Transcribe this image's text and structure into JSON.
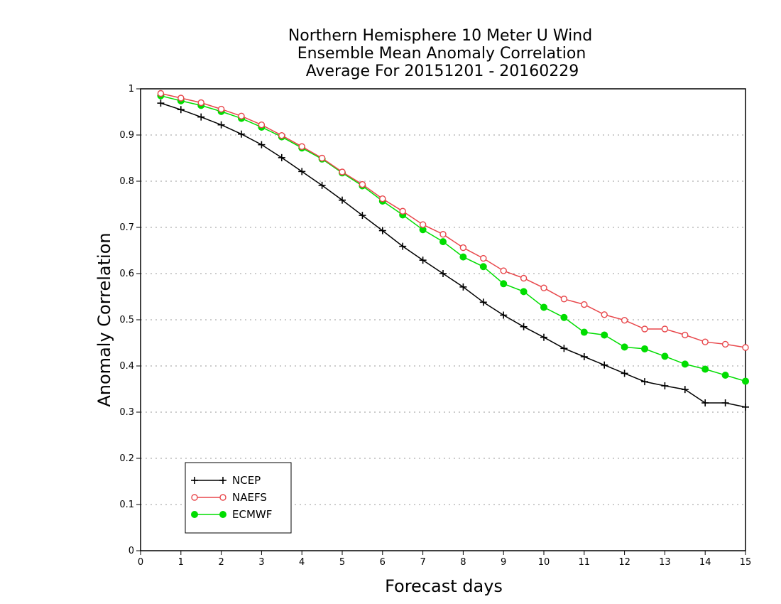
{
  "chart_data": {
    "type": "line",
    "title_lines": [
      "Northern Hemisphere 10 Meter U Wind",
      "Ensemble Mean Anomaly Correlation",
      "Average For 20151201 - 20160229"
    ],
    "xlabel": "Forecast days",
    "ylabel": "Anomaly Correlation",
    "xlim": [
      0,
      15
    ],
    "ylim": [
      0,
      1
    ],
    "x_ticks": [
      "0",
      "1",
      "2",
      "3",
      "4",
      "5",
      "6",
      "7",
      "8",
      "9",
      "10",
      "11",
      "12",
      "13",
      "14",
      "15"
    ],
    "y_ticks": [
      "0",
      "0.1",
      "0.2",
      "0.3",
      "0.4",
      "0.5",
      "0.6",
      "0.7",
      "0.8",
      "0.9",
      "1"
    ],
    "grid": "horizontal dotted",
    "legend_position": "bottom-left",
    "x": [
      0.5,
      1,
      1.5,
      2,
      2.5,
      3,
      3.5,
      4,
      4.5,
      5,
      5.5,
      6,
      6.5,
      7,
      7.5,
      8,
      8.5,
      9,
      9.5,
      10,
      10.5,
      11,
      11.5,
      12,
      12.5,
      13,
      13.5,
      14,
      14.5,
      15
    ],
    "series": [
      {
        "name": "NCEP",
        "color": "#000000",
        "marker": "plus",
        "values": [
          0.969,
          0.955,
          0.939,
          0.922,
          0.902,
          0.879,
          0.851,
          0.821,
          0.791,
          0.759,
          0.726,
          0.693,
          0.659,
          0.629,
          0.6,
          0.571,
          0.538,
          0.51,
          0.485,
          0.462,
          0.438,
          0.42,
          0.402,
          0.384,
          0.366,
          0.357,
          0.349,
          0.32,
          0.32,
          0.311
        ]
      },
      {
        "name": "NAEFS",
        "color": "#e8474b",
        "marker": "open-circle",
        "values": [
          0.99,
          0.98,
          0.97,
          0.956,
          0.941,
          0.922,
          0.899,
          0.875,
          0.85,
          0.82,
          0.793,
          0.762,
          0.735,
          0.706,
          0.685,
          0.656,
          0.633,
          0.606,
          0.59,
          0.569,
          0.545,
          0.533,
          0.511,
          0.499,
          0.48,
          0.48,
          0.467,
          0.452,
          0.447,
          0.44
        ]
      },
      {
        "name": "ECMWF",
        "color": "#00dd00",
        "marker": "filled-circle",
        "values": [
          0.985,
          0.974,
          0.964,
          0.951,
          0.936,
          0.917,
          0.896,
          0.872,
          0.848,
          0.818,
          0.79,
          0.757,
          0.727,
          0.695,
          0.669,
          0.636,
          0.615,
          0.578,
          0.561,
          0.527,
          0.505,
          0.473,
          0.467,
          0.441,
          0.437,
          0.421,
          0.404,
          0.393,
          0.38,
          0.367
        ]
      }
    ]
  }
}
